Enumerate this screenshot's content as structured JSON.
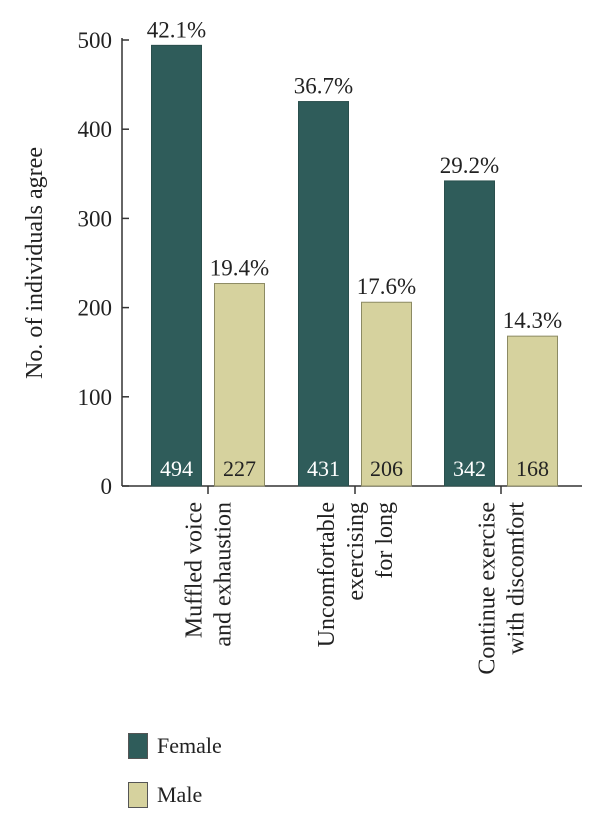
{
  "chart_data": {
    "type": "bar",
    "categories": [
      [
        "Muffled voice",
        "and exhaustion"
      ],
      [
        "Uncomfortable",
        "exercising",
        "for long"
      ],
      [
        "Continue exercise",
        "with discomfort"
      ]
    ],
    "series": [
      {
        "name": "Female",
        "values": [
          494,
          431,
          342
        ],
        "percent_labels": [
          "42.1%",
          "36.7%",
          "29.2%"
        ],
        "color": "#2f5c5a"
      },
      {
        "name": "Male",
        "values": [
          227,
          206,
          168
        ],
        "percent_labels": [
          "19.4%",
          "17.6%",
          "14.3%"
        ],
        "color": "#d6d29e"
      }
    ],
    "ylabel": "No. of individuals agree",
    "ylim": [
      0,
      500
    ],
    "yticks": [
      0,
      100,
      200,
      300,
      400,
      500
    ],
    "grid": false,
    "legend_position": "bottom-left"
  },
  "legend": {
    "female_label": "Female",
    "male_label": "Male"
  }
}
